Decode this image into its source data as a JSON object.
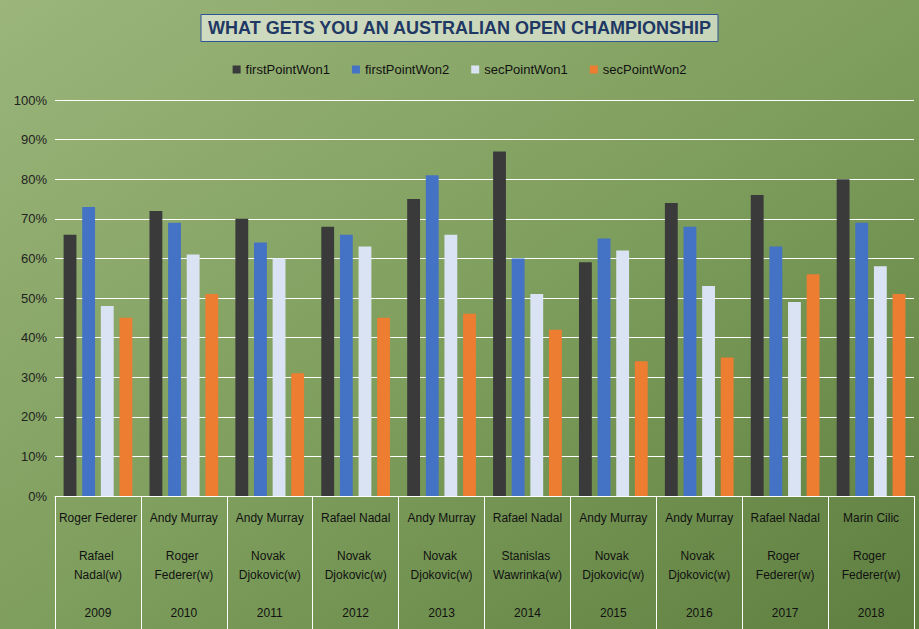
{
  "chart_data": {
    "type": "bar",
    "title": "WHAT GETS YOU AN AUSTRALIAN OPEN CHAMPIONSHIP",
    "categories": [
      "2009",
      "2010",
      "2011",
      "2012",
      "2013",
      "2014",
      "2015",
      "2016",
      "2017",
      "2018"
    ],
    "players": [
      {
        "runner_up": "Roger Federer",
        "winner": "Rafael Nadal(w)"
      },
      {
        "runner_up": "Andy Murray",
        "winner": "Roger Federer(w)"
      },
      {
        "runner_up": "Andy Murray",
        "winner": "Novak Djokovic(w)"
      },
      {
        "runner_up": "Rafael Nadal",
        "winner": "Novak Djokovic(w)"
      },
      {
        "runner_up": "Andy Murray",
        "winner": "Novak Djokovic(w)"
      },
      {
        "runner_up": "Rafael Nadal",
        "winner": "Stanislas Wawrinka(w)"
      },
      {
        "runner_up": "Andy Murray",
        "winner": "Novak Djokovic(w)"
      },
      {
        "runner_up": "Andy Murray",
        "winner": "Novak Djokovic(w)"
      },
      {
        "runner_up": "Rafael Nadal",
        "winner": "Roger Federer(w)"
      },
      {
        "runner_up": "Marin Cilic",
        "winner": "Roger Federer(w)"
      }
    ],
    "series": [
      {
        "name": "firstPointWon1",
        "color": "#3a3a3a",
        "values": [
          66,
          72,
          70,
          68,
          75,
          87,
          59,
          74,
          76,
          80
        ]
      },
      {
        "name": "firstPointWon2",
        "color": "#4472c4",
        "values": [
          73,
          69,
          64,
          66,
          81,
          60,
          65,
          68,
          63,
          69
        ]
      },
      {
        "name": "secPointWon1",
        "color": "#dae3f3",
        "values": [
          48,
          61,
          60,
          63,
          66,
          51,
          62,
          53,
          49,
          58
        ]
      },
      {
        "name": "secPointWon2",
        "color": "#ed7d31",
        "values": [
          45,
          51,
          31,
          45,
          46,
          42,
          34,
          35,
          56,
          51
        ]
      }
    ],
    "ylim": [
      0,
      100
    ],
    "yticks": [
      {
        "value": 0,
        "label": "0%"
      },
      {
        "value": 10,
        "label": "10%"
      },
      {
        "value": 20,
        "label": "20%"
      },
      {
        "value": 30,
        "label": "30%"
      },
      {
        "value": 40,
        "label": "40%"
      },
      {
        "value": 50,
        "label": "50%"
      },
      {
        "value": 60,
        "label": "60%"
      },
      {
        "value": 70,
        "label": "70%"
      },
      {
        "value": 80,
        "label": "80%"
      },
      {
        "value": 90,
        "label": "90%"
      },
      {
        "value": 100,
        "label": "100%"
      }
    ],
    "grid": true,
    "legend": "top"
  }
}
